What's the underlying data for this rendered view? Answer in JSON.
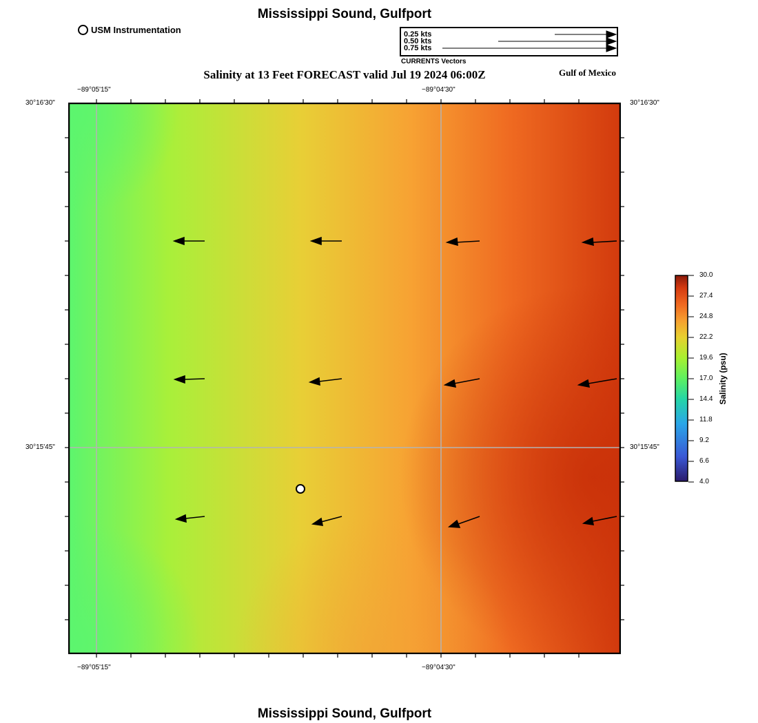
{
  "header": {
    "title": "Mississippi Sound, Gulfport",
    "subtitle": "Salinity at 13 Feet FORECAST valid Jul 19 2024 06:00Z",
    "region_label": "Gulf of Mexico",
    "footer_title": "Mississippi Sound, Gulfport"
  },
  "legend": {
    "station_marker_label": "USM Instrumentation",
    "vector_scale": [
      "0.25 kts",
      "0.50 kts",
      "0.75 kts"
    ],
    "vector_caption": "CURRENTS Vectors"
  },
  "axes": {
    "lon_ticks": [
      "−89°05'15\"",
      "−89°04'30\""
    ],
    "lat_ticks": [
      "30°16'30\"",
      "30°15'45\""
    ]
  },
  "colorbar": {
    "title": "Salinity (psu)",
    "ticks": [
      "30.0",
      "27.4",
      "24.8",
      "22.2",
      "19.6",
      "17.0",
      "14.4",
      "11.8",
      "9.2",
      "6.6",
      "4.0"
    ],
    "colors": [
      "#2a1a6b",
      "#3a58d6",
      "#2aa6e8",
      "#25d6a6",
      "#5ef060",
      "#a8f030",
      "#e8d030",
      "#f6a030",
      "#f06820",
      "#d43a10",
      "#8a1a0a"
    ]
  },
  "map": {
    "field_colors": {
      "low": "#5cf56e",
      "mid_low": "#a8f03a",
      "mid": "#e8cf36",
      "mid_high": "#f7a233",
      "high": "#ef6a21",
      "max": "#d23a0d"
    },
    "grid_color": "#b4b4b4"
  }
}
